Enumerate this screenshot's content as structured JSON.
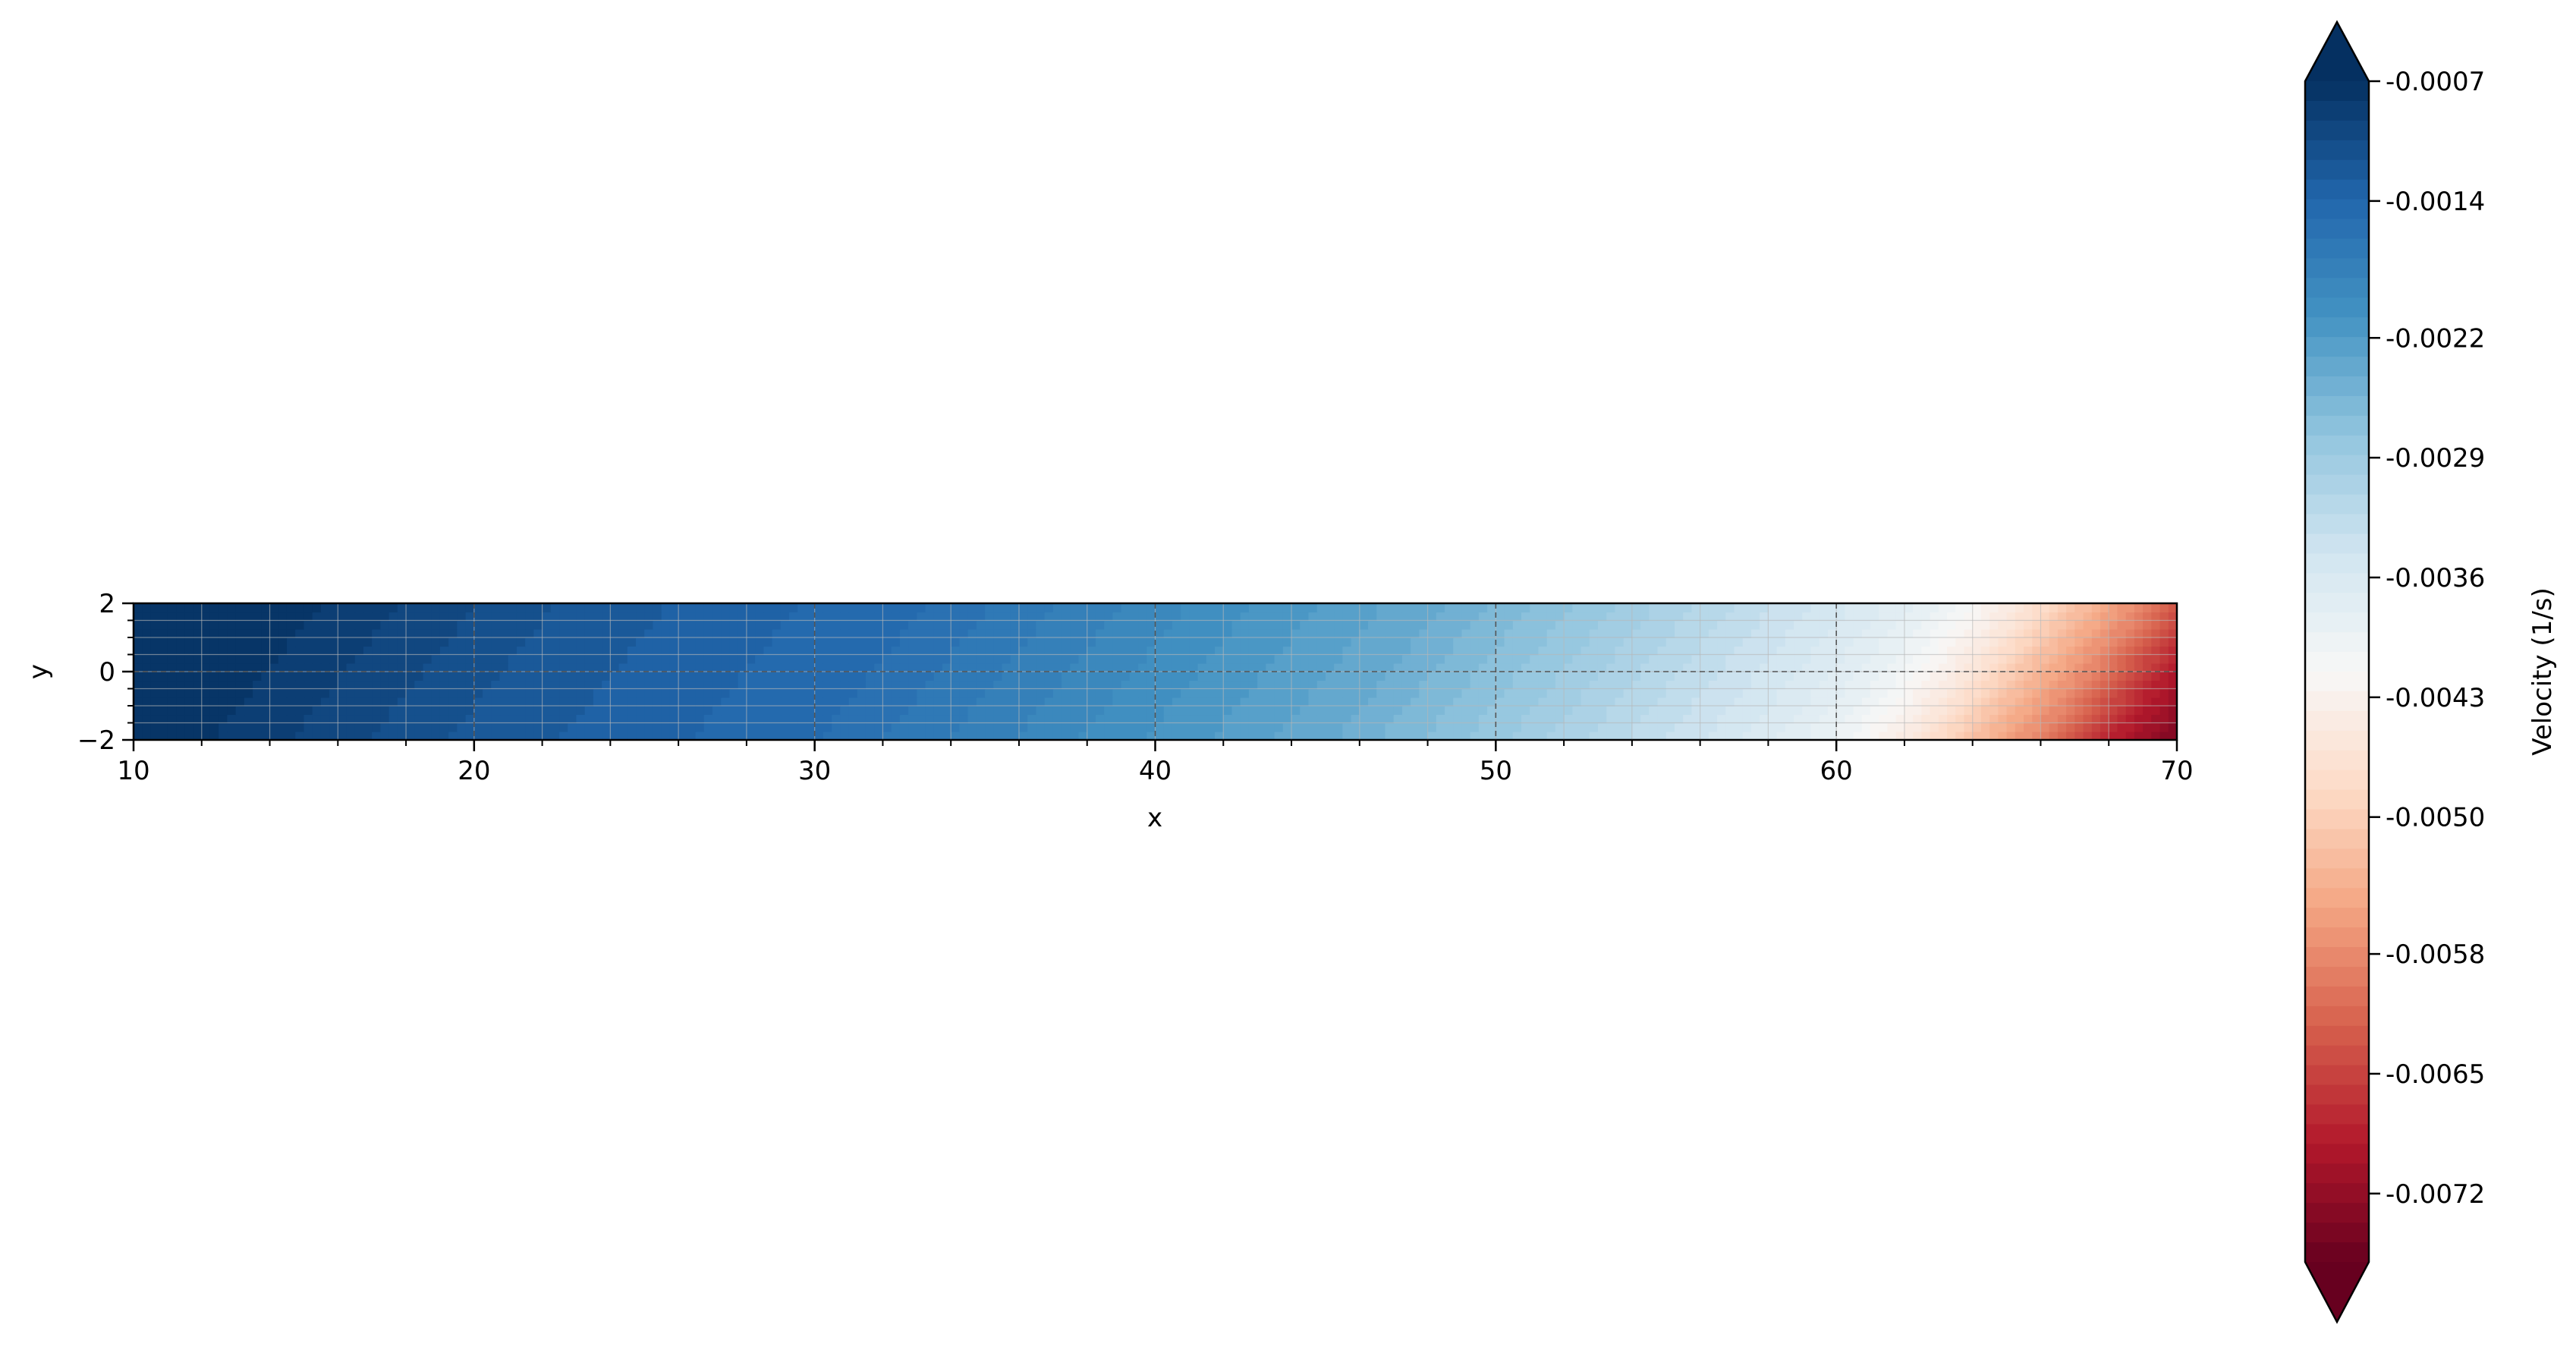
{
  "chart_data": {
    "type": "heatmap",
    "title": "",
    "xlabel": "x",
    "ylabel": "y",
    "xlim": [
      10,
      70
    ],
    "ylim": [
      -2,
      2
    ],
    "x_ticks": [
      "10",
      "20",
      "30",
      "40",
      "50",
      "60",
      "70"
    ],
    "y_ticks": [
      "2",
      "0",
      "−2"
    ],
    "x_minor_step": 2,
    "y_minor_step": 0.5,
    "grid": {
      "major": true,
      "minor": true,
      "major_style": "dashed"
    },
    "field_profile": {
      "x": [
        10,
        20,
        30,
        40,
        45,
        50,
        55,
        58,
        60,
        62,
        64,
        66,
        68,
        70
      ],
      "value": [
        -0.0007,
        -0.0012,
        -0.0015,
        -0.0021,
        -0.0024,
        -0.00285,
        -0.00335,
        -0.00365,
        -0.00395,
        -0.00445,
        -0.0052,
        -0.0059,
        -0.0068,
        -0.0074
      ]
    },
    "colorbar": {
      "label": "Velocity (1/s)",
      "cmap": "RdBu",
      "range": [
        -0.0076,
        -0.0007
      ],
      "extend": "both",
      "levels": 60,
      "ticks": [
        -0.0007,
        -0.0014,
        -0.0022,
        -0.0029,
        -0.0036,
        -0.0043,
        -0.005,
        -0.0058,
        -0.0065,
        -0.0072
      ],
      "tick_labels": [
        "-0.0007",
        "-0.0014",
        "-0.0022",
        "-0.0029",
        "-0.0036",
        "-0.0043",
        "-0.0050",
        "-0.0058",
        "-0.0065",
        "-0.0072"
      ],
      "colors": [
        "#053061",
        "#2166ac",
        "#4393c3",
        "#92c5de",
        "#d1e5f0",
        "#f7f7f7",
        "#fddbc7",
        "#f4a582",
        "#d6604d",
        "#b2182b",
        "#67001f"
      ]
    }
  }
}
